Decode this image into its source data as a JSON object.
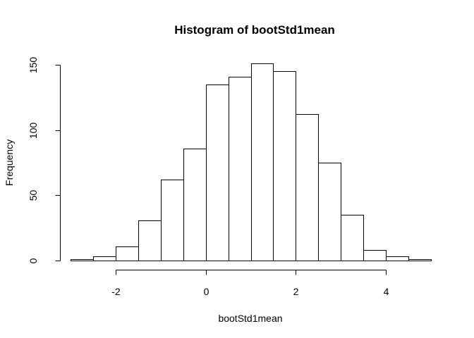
{
  "chart_data": {
    "type": "bar",
    "title": "Histogram of bootStd1mean",
    "xlabel": "bootStd1mean",
    "ylabel": "Frequency",
    "bin_width": 0.5,
    "bins": [
      {
        "x0": -3.0,
        "x1": -2.5,
        "count": 1
      },
      {
        "x0": -2.5,
        "x1": -2.0,
        "count": 3
      },
      {
        "x0": -2.0,
        "x1": -1.5,
        "count": 11
      },
      {
        "x0": -1.5,
        "x1": -1.0,
        "count": 31
      },
      {
        "x0": -1.0,
        "x1": -0.5,
        "count": 62
      },
      {
        "x0": -0.5,
        "x1": 0.0,
        "count": 86
      },
      {
        "x0": 0.0,
        "x1": 0.5,
        "count": 135
      },
      {
        "x0": 0.5,
        "x1": 1.0,
        "count": 141
      },
      {
        "x0": 1.0,
        "x1": 1.5,
        "count": 151
      },
      {
        "x0": 1.5,
        "x1": 2.0,
        "count": 145
      },
      {
        "x0": 2.0,
        "x1": 2.5,
        "count": 112
      },
      {
        "x0": 2.5,
        "x1": 3.0,
        "count": 75
      },
      {
        "x0": 3.0,
        "x1": 3.5,
        "count": 35
      },
      {
        "x0": 3.5,
        "x1": 4.0,
        "count": 8
      },
      {
        "x0": 4.0,
        "x1": 4.5,
        "count": 3
      },
      {
        "x0": 4.5,
        "x1": 5.0,
        "count": 1
      }
    ],
    "xlim": [
      -3,
      5
    ],
    "ylim": [
      0,
      155
    ],
    "x_ticks": [
      -2,
      0,
      2,
      4
    ],
    "x_tick_labels": [
      "-2",
      "0",
      "2",
      "4"
    ],
    "y_ticks": [
      0,
      50,
      100,
      150
    ],
    "y_tick_labels": [
      "0",
      "50",
      "100",
      "150"
    ],
    "grid": false,
    "legend": "none",
    "colors": {
      "bar_fill": "#ffffff",
      "bar_stroke": "#000000",
      "text": "#000000"
    }
  }
}
